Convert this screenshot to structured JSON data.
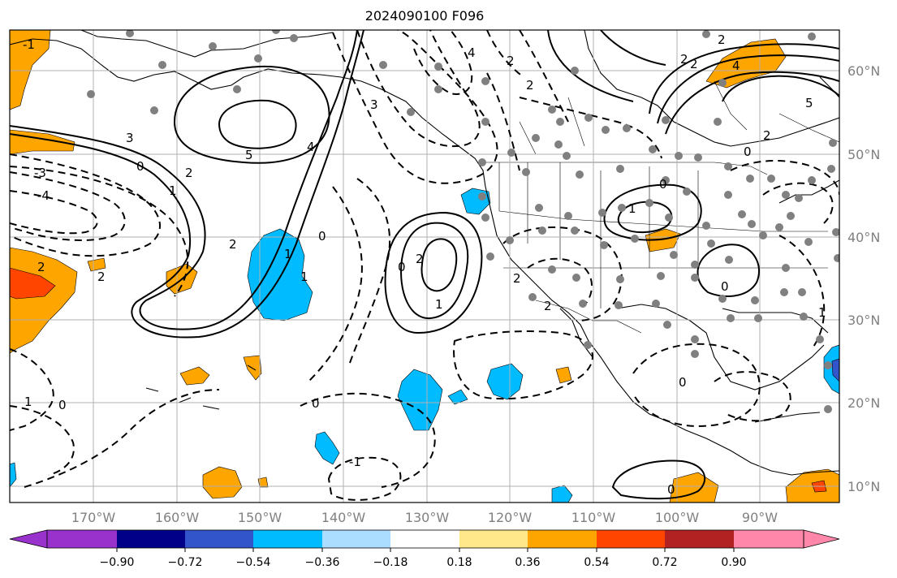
{
  "title": "2024090100 F096",
  "map": {
    "lon_labels": [
      "170°W",
      "160°W",
      "150°W",
      "140°W",
      "130°W",
      "120°W",
      "110°W",
      "100°W",
      "90°W"
    ],
    "lat_labels": [
      "60°N",
      "50°N",
      "40°N",
      "30°N",
      "20°N",
      "10°N"
    ],
    "contour_labels": [
      "-4",
      "-3",
      "-2",
      "-1",
      "0",
      "1",
      "2",
      "3",
      "4",
      "5"
    ],
    "positive_contour_style": "solid",
    "negative_contour_style": "dashed",
    "station_marker_color": "#808080",
    "coastline_color": "#000000",
    "grid_color": "#b0b0b0"
  },
  "colorbar": {
    "tick_labels": [
      "−0.90",
      "−0.72",
      "−0.54",
      "−0.36",
      "−0.18",
      "0.18",
      "0.36",
      "0.54",
      "0.72",
      "0.90"
    ],
    "extend_low_color": "#9932cc",
    "extend_high_color": "#ff88aa",
    "colors": [
      "#000088",
      "#3355cc",
      "#00bbff",
      "#aaddff",
      "#ffffff",
      "#ffe88a",
      "#ffa500",
      "#ff4500",
      "#b22222"
    ]
  }
}
